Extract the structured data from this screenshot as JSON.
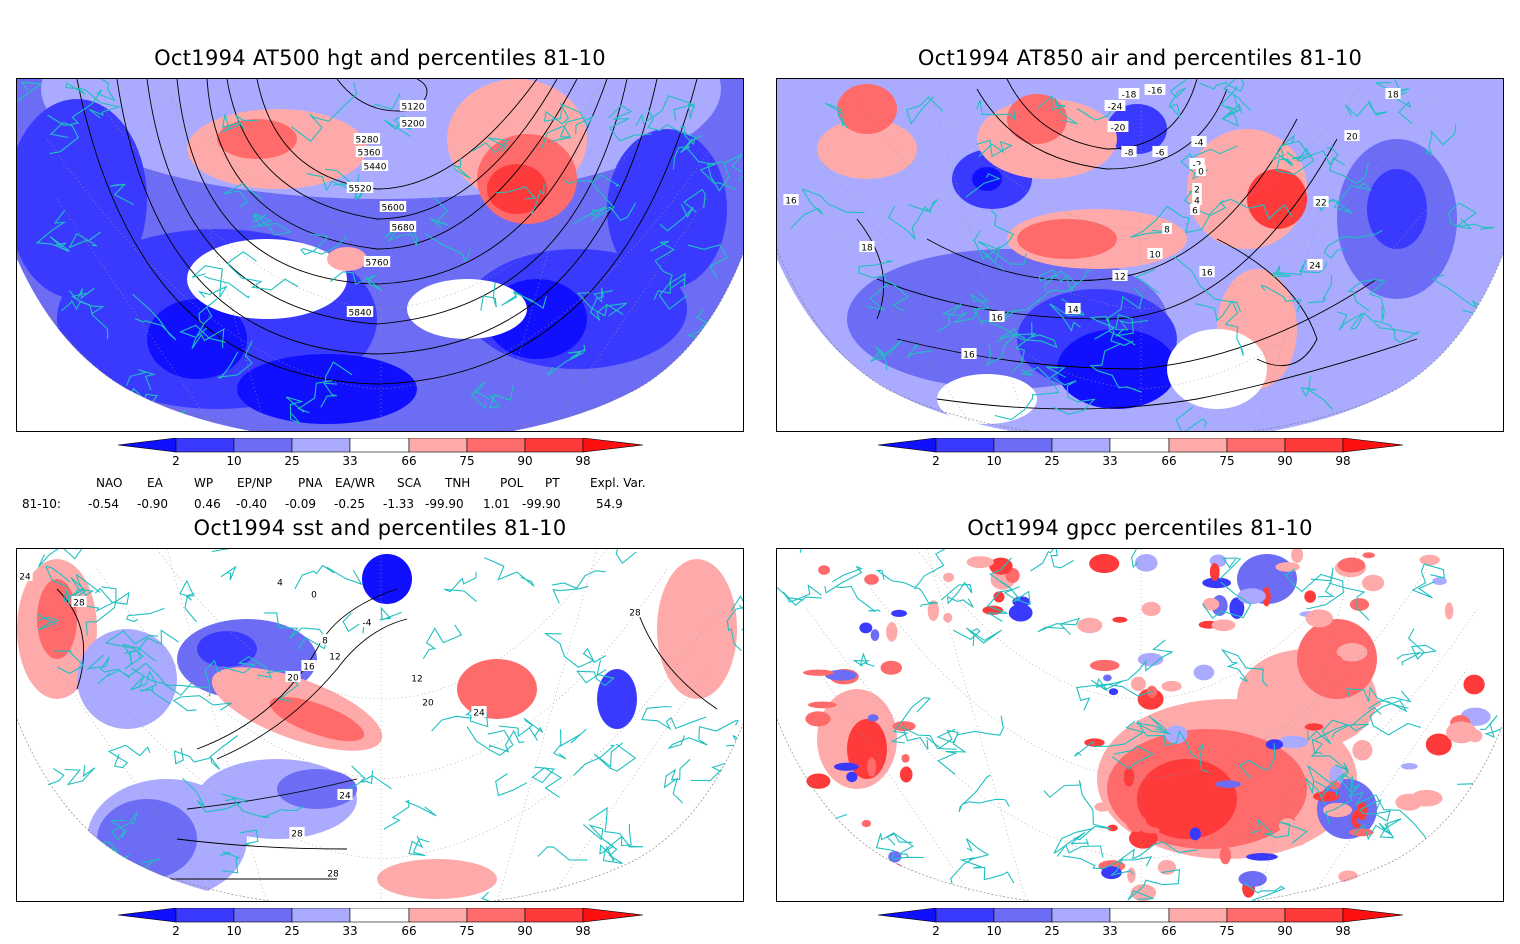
{
  "colors": {
    "coast": "#20c0c0",
    "contour": "#000000",
    "scale": [
      "#1010ff",
      "#3a3aff",
      "#6c6cf5",
      "#aaaaff",
      "#ffffff",
      "#ffaaaa",
      "#ff6a6a",
      "#ff3a3a",
      "#ff1010"
    ]
  },
  "colorbar": {
    "labels": [
      "2",
      "10",
      "25",
      "33",
      "66",
      "75",
      "90",
      "98"
    ]
  },
  "panels": [
    {
      "id": "hgt500",
      "title": "Oct1994 AT500 hgt and percentiles 81-10",
      "contour_labels": [
        "5120",
        "5200",
        "5280",
        "5360",
        "5440",
        "5520",
        "5600",
        "5680",
        "5760",
        "5840"
      ]
    },
    {
      "id": "air850",
      "title": "Oct1994 AT850 air and percentiles 81-10",
      "contour_labels": [
        "-18",
        "-16",
        "-24",
        "-20",
        "-4",
        "-8",
        "-6",
        "-2",
        "0",
        "2",
        "4",
        "6",
        "8",
        "10",
        "12",
        "16",
        "18",
        "20",
        "22",
        "24",
        "14",
        "16",
        "18",
        "16",
        "16"
      ]
    },
    {
      "id": "sst",
      "title": "Oct1994 sst and percentiles 81-10",
      "contour_labels": [
        "24",
        "28",
        "4",
        "0",
        "-4",
        "8",
        "12",
        "16",
        "20",
        "12",
        "20",
        "24",
        "28",
        "24",
        "28",
        "28"
      ]
    },
    {
      "id": "gpcc",
      "title": "Oct1994 gpcc percentiles 81-10",
      "contour_labels": []
    }
  ],
  "indices": {
    "row_label": "81-10:",
    "items": [
      {
        "name": "NAO",
        "value": "-0.54"
      },
      {
        "name": "EA",
        "value": "-0.90"
      },
      {
        "name": "WP",
        "value": "0.46"
      },
      {
        "name": "EP/NP",
        "value": "-0.40"
      },
      {
        "name": "PNA",
        "value": "-0.09"
      },
      {
        "name": "EA/WR",
        "value": "-0.25"
      },
      {
        "name": "SCA",
        "value": "-1.33"
      },
      {
        "name": "TNH",
        "value": "-99.90"
      },
      {
        "name": "POL",
        "value": "1.01"
      },
      {
        "name": "PT",
        "value": "-99.90"
      },
      {
        "name": "Expl. Var.",
        "value": "54.9"
      }
    ]
  }
}
